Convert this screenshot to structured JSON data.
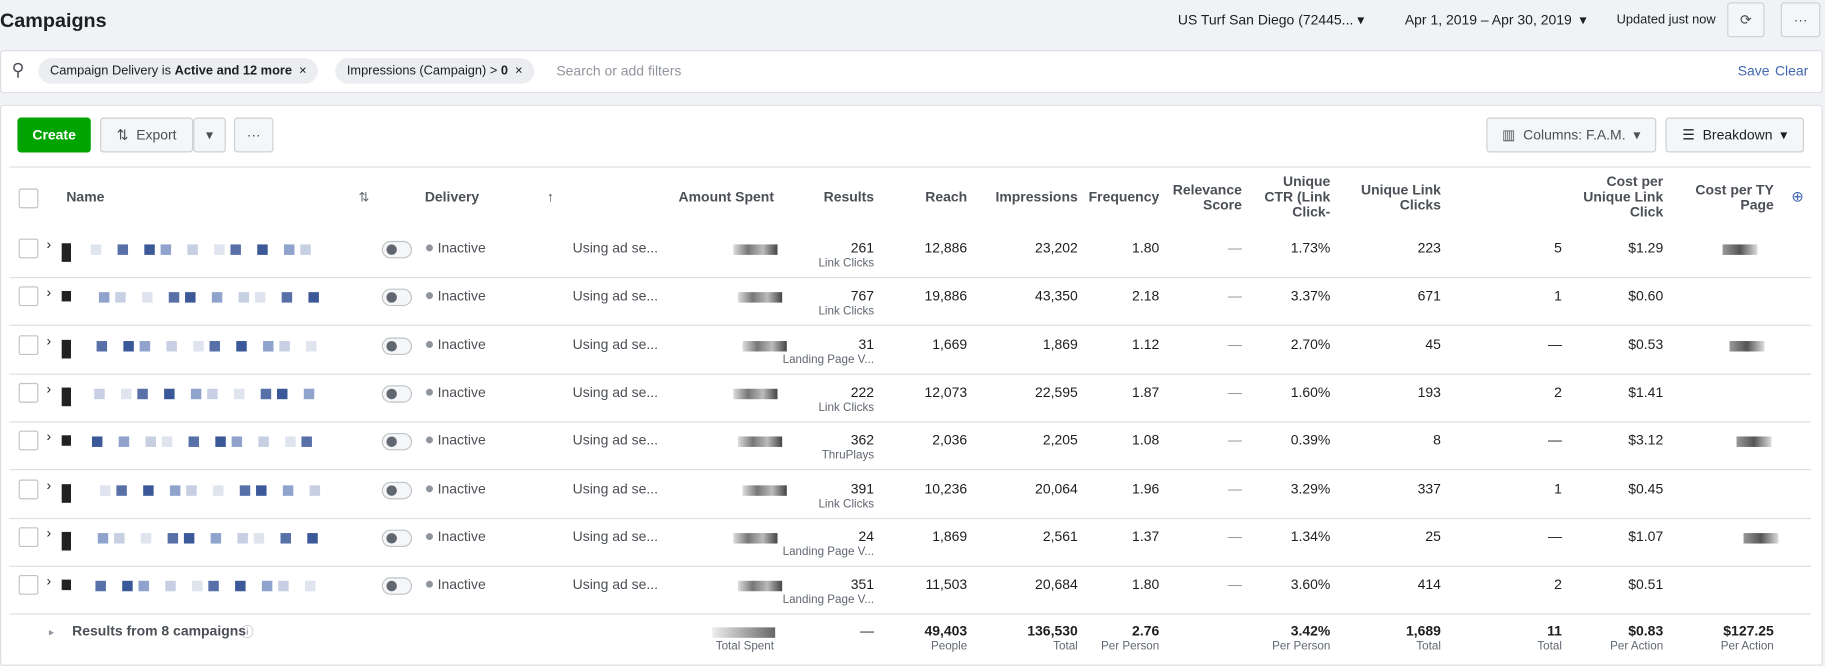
{
  "header": {
    "title": "Campaigns",
    "account": "US Turf San Diego (72445...",
    "date_range": "Apr 1, 2019 – Apr 30, 2019",
    "updated": "Updated just now"
  },
  "filters": {
    "chips": [
      {
        "field": "Campaign Delivery is",
        "value": "Active and 12 more"
      },
      {
        "field": "Impressions (Campaign) >",
        "value": "0"
      }
    ],
    "placeholder": "Search or add filters",
    "save": "Save",
    "clear": "Clear"
  },
  "toolbar": {
    "create": "Create",
    "export": "Export",
    "columns": "Columns: F.A.M.",
    "breakdown": "Breakdown"
  },
  "table": {
    "headers": {
      "name": "Name",
      "delivery": "Delivery",
      "amount": "Amount Spent",
      "results": "Results",
      "reach": "Reach",
      "impressions": "Impressions",
      "frequency": "Frequency",
      "relevance": "Relevance Score",
      "ctr": "Unique CTR (Link Click-",
      "ulc": "Unique Link Clicks",
      "cpulc": "Cost per Unique Link Click",
      "cpty": "Cost per TY Page"
    },
    "rows": [
      {
        "delivery": "Inactive",
        "bid": "Using ad se...",
        "results": "261",
        "result_type": "Link Clicks",
        "reach": "12,886",
        "impressions": "23,202",
        "frequency": "1.80",
        "relevance": "—",
        "ctr": "1.73%",
        "ulc": "223",
        "extra": "5",
        "cpulc": "$1.29"
      },
      {
        "delivery": "Inactive",
        "bid": "Using ad se...",
        "results": "767",
        "result_type": "Link Clicks",
        "reach": "19,886",
        "impressions": "43,350",
        "frequency": "2.18",
        "relevance": "—",
        "ctr": "3.37%",
        "ulc": "671",
        "extra": "1",
        "cpulc": "$0.60"
      },
      {
        "delivery": "Inactive",
        "bid": "Using ad se...",
        "results": "31",
        "result_type": "Landing Page V...",
        "reach": "1,669",
        "impressions": "1,869",
        "frequency": "1.12",
        "relevance": "—",
        "ctr": "2.70%",
        "ulc": "45",
        "extra": "—",
        "cpulc": "$0.53"
      },
      {
        "delivery": "Inactive",
        "bid": "Using ad se...",
        "results": "222",
        "result_type": "Link Clicks",
        "reach": "12,073",
        "impressions": "22,595",
        "frequency": "1.87",
        "relevance": "—",
        "ctr": "1.60%",
        "ulc": "193",
        "extra": "2",
        "cpulc": "$1.41"
      },
      {
        "delivery": "Inactive",
        "bid": "Using ad se...",
        "results": "362",
        "result_type": "ThruPlays",
        "reach": "2,036",
        "impressions": "2,205",
        "frequency": "1.08",
        "relevance": "—",
        "ctr": "0.39%",
        "ulc": "8",
        "extra": "—",
        "cpulc": "$3.12"
      },
      {
        "delivery": "Inactive",
        "bid": "Using ad se...",
        "results": "391",
        "result_type": "Link Clicks",
        "reach": "10,236",
        "impressions": "20,064",
        "frequency": "1.96",
        "relevance": "—",
        "ctr": "3.29%",
        "ulc": "337",
        "extra": "1",
        "cpulc": "$0.45"
      },
      {
        "delivery": "Inactive",
        "bid": "Using ad se...",
        "results": "24",
        "result_type": "Landing Page V...",
        "reach": "1,869",
        "impressions": "2,561",
        "frequency": "1.37",
        "relevance": "—",
        "ctr": "1.34%",
        "ulc": "25",
        "extra": "—",
        "cpulc": "$1.07"
      },
      {
        "delivery": "Inactive",
        "bid": "Using ad se...",
        "results": "351",
        "result_type": "Landing Page V...",
        "reach": "11,503",
        "impressions": "20,684",
        "frequency": "1.80",
        "relevance": "—",
        "ctr": "3.60%",
        "ulc": "414",
        "extra": "2",
        "cpulc": "$0.51"
      }
    ],
    "totals": {
      "label": "Results from 8 campaigns",
      "amount_sub": "Total Spent",
      "results": "—",
      "reach": {
        "value": "49,403",
        "sub": "People"
      },
      "impressions": {
        "value": "136,530",
        "sub": "Total"
      },
      "frequency": {
        "value": "2.76",
        "sub": "Per Person"
      },
      "ctr": {
        "value": "3.42%",
        "sub": "Per Person"
      },
      "ulc": {
        "value": "1,689",
        "sub": "Total"
      },
      "extra": {
        "value": "11",
        "sub": "Total"
      },
      "cpulc": {
        "value": "$0.83",
        "sub": "Per Action"
      },
      "cpty": {
        "value": "$127.25",
        "sub": "Per Action"
      }
    }
  }
}
